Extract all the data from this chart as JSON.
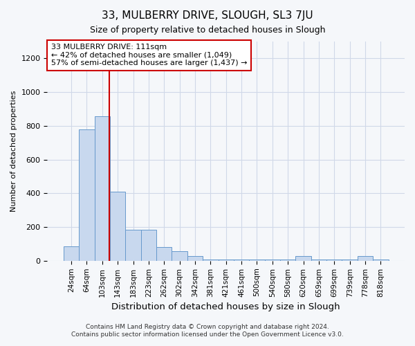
{
  "title": "33, MULBERRY DRIVE, SLOUGH, SL3 7JU",
  "subtitle": "Size of property relative to detached houses in Slough",
  "xlabel": "Distribution of detached houses by size in Slough",
  "ylabel": "Number of detached properties",
  "bar_labels": [
    "24sqm",
    "64sqm",
    "103sqm",
    "143sqm",
    "183sqm",
    "223sqm",
    "262sqm",
    "302sqm",
    "342sqm",
    "381sqm",
    "421sqm",
    "461sqm",
    "500sqm",
    "540sqm",
    "580sqm",
    "620sqm",
    "659sqm",
    "699sqm",
    "739sqm",
    "778sqm",
    "818sqm"
  ],
  "bar_values": [
    85,
    780,
    855,
    410,
    185,
    185,
    80,
    55,
    30,
    8,
    8,
    8,
    8,
    8,
    8,
    30,
    8,
    8,
    8,
    30,
    8
  ],
  "bar_color": "#c8d8ee",
  "bar_edgecolor": "#6699cc",
  "ylim": [
    0,
    1300
  ],
  "yticks": [
    0,
    200,
    400,
    600,
    800,
    1000,
    1200
  ],
  "vline_x": 2.45,
  "vline_color": "#cc0000",
  "annotation_text": "33 MULBERRY DRIVE: 111sqm\n← 42% of detached houses are smaller (1,049)\n57% of semi-detached houses are larger (1,437) →",
  "annotation_box_color": "#ffffff",
  "annotation_box_edgecolor": "#cc0000",
  "footer1": "Contains HM Land Registry data © Crown copyright and database right 2024.",
  "footer2": "Contains public sector information licensed under the Open Government Licence v3.0.",
  "background_color": "#f5f7fa",
  "plot_background": "#f5f7fa",
  "grid_color": "#d0d8e8"
}
